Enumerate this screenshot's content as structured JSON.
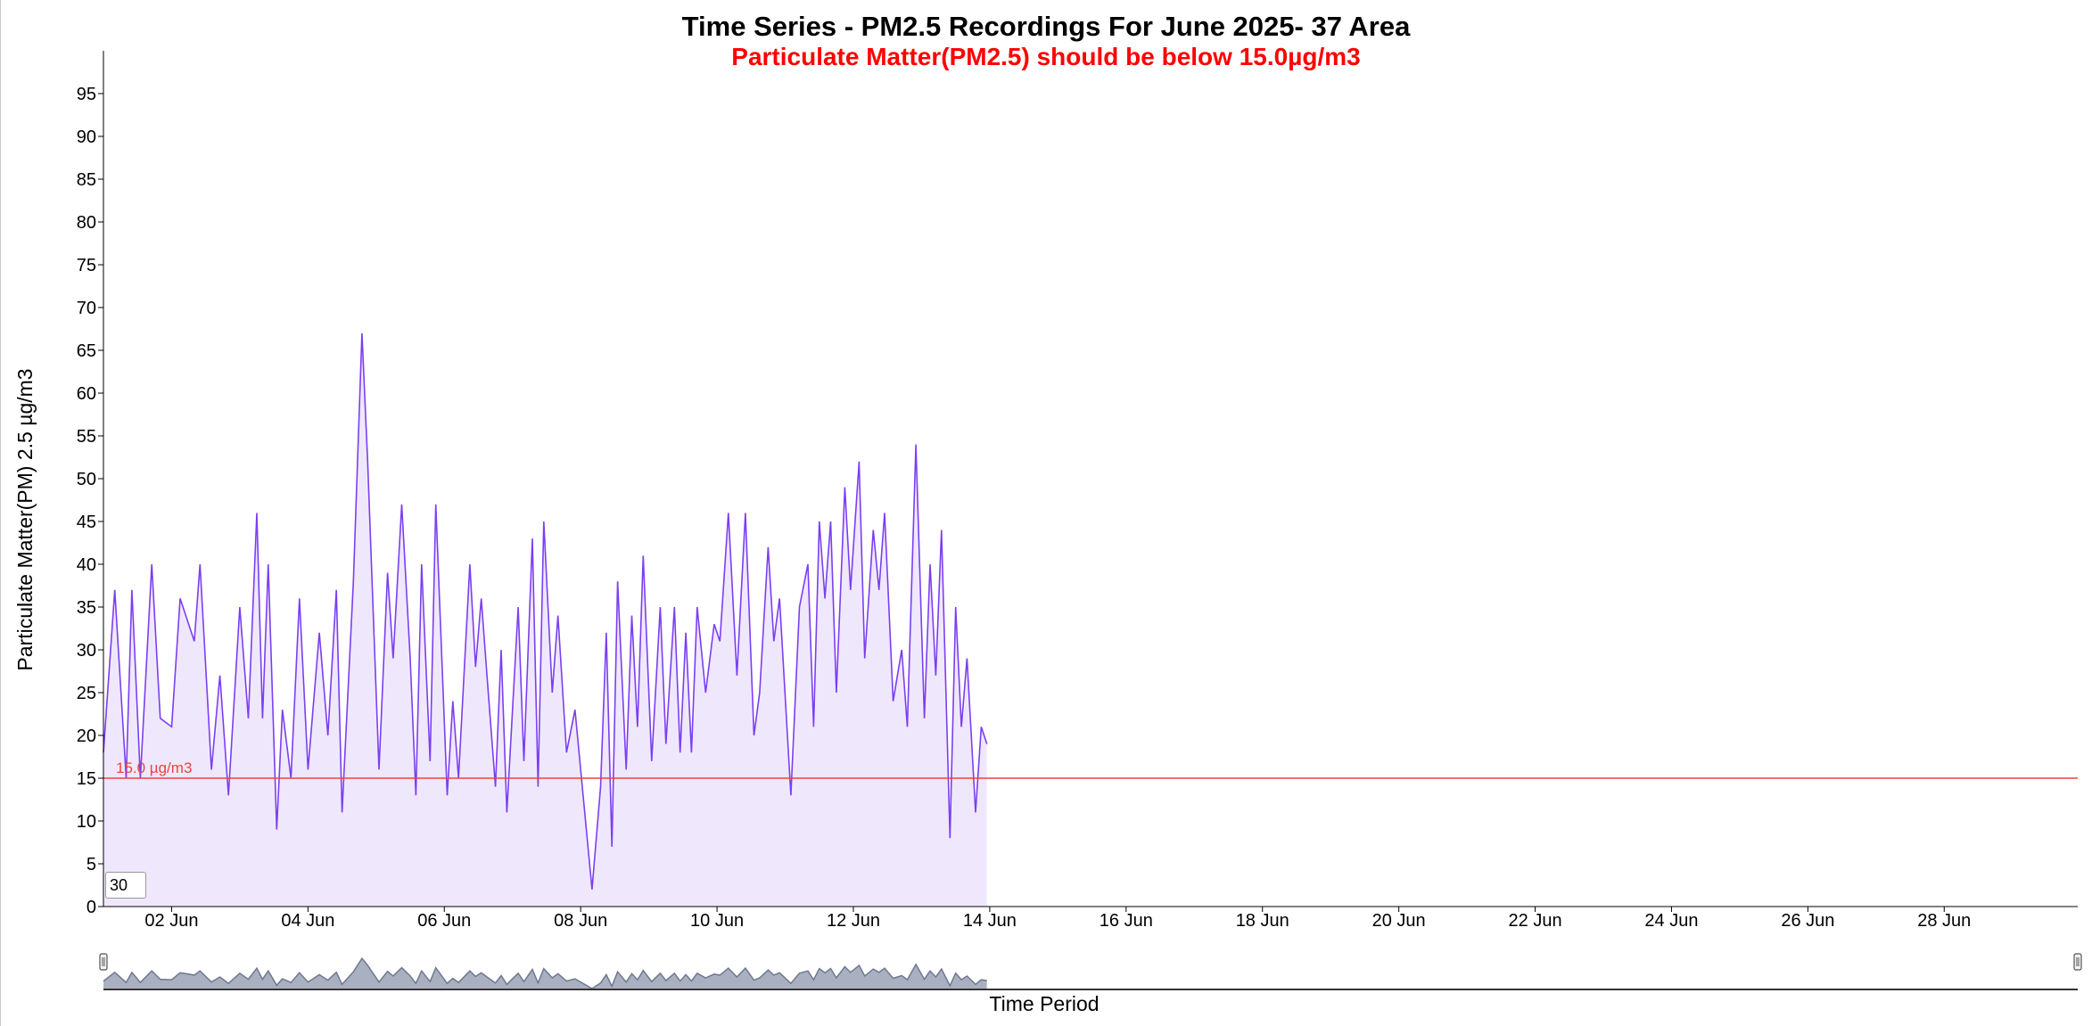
{
  "title": "Time Series - PM2.5 Recordings For June 2025- 37 Area",
  "subtitle": "Particulate Matter(PM2.5) should be below 15.0µg/m3",
  "zoom_value": "30",
  "colors": {
    "series_line": "#7b3ff2",
    "series_fill": "#efe8fd",
    "threshold": "#e8453c",
    "subtitle": "#ff0000",
    "navigator_fill": "#a9b0c0",
    "navigator_line": "#6e7890"
  },
  "chart_data": {
    "type": "area",
    "title": "Time Series - PM2.5 Recordings For June 2025- 37 Area",
    "subtitle": "Particulate Matter(PM2.5) should be below 15.0µg/m3",
    "xlabel": "Time Period",
    "ylabel": "Particulate Matter(PM) 2.5 µg/m3",
    "ylim": [
      0,
      100
    ],
    "yticks": [
      0,
      5,
      10,
      15,
      20,
      25,
      30,
      35,
      40,
      45,
      50,
      55,
      60,
      65,
      70,
      75,
      80,
      85,
      90,
      95
    ],
    "xlim": [
      "2025-06-01 00:00",
      "2025-06-29 23:00"
    ],
    "xticks": [
      {
        "date": "2025-06-02",
        "label": "02 Jun"
      },
      {
        "date": "2025-06-04",
        "label": "04 Jun"
      },
      {
        "date": "2025-06-06",
        "label": "06 Jun"
      },
      {
        "date": "2025-06-08",
        "label": "08 Jun"
      },
      {
        "date": "2025-06-10",
        "label": "10 Jun"
      },
      {
        "date": "2025-06-12",
        "label": "12 Jun"
      },
      {
        "date": "2025-06-14",
        "label": "14 Jun"
      },
      {
        "date": "2025-06-16",
        "label": "16 Jun"
      },
      {
        "date": "2025-06-18",
        "label": "18 Jun"
      },
      {
        "date": "2025-06-20",
        "label": "20 Jun"
      },
      {
        "date": "2025-06-22",
        "label": "22 Jun"
      },
      {
        "date": "2025-06-24",
        "label": "24 Jun"
      },
      {
        "date": "2025-06-26",
        "label": "26 Jun"
      },
      {
        "date": "2025-06-28",
        "label": "28 Jun"
      }
    ],
    "threshold": {
      "value": 15,
      "label": "15.0 µg/m3"
    },
    "grid": false,
    "legend": "none",
    "navigator": true,
    "series": [
      {
        "points": [
          [
            "2025-06-01 00:00",
            18
          ],
          [
            "2025-06-01 04:00",
            37
          ],
          [
            "2025-06-01 08:00",
            15
          ],
          [
            "2025-06-01 10:00",
            37
          ],
          [
            "2025-06-01 13:00",
            15
          ],
          [
            "2025-06-01 17:00",
            40
          ],
          [
            "2025-06-01 20:00",
            22
          ],
          [
            "2025-06-02 00:00",
            21
          ],
          [
            "2025-06-02 03:00",
            36
          ],
          [
            "2025-06-02 05:00",
            34
          ],
          [
            "2025-06-02 08:00",
            31
          ],
          [
            "2025-06-02 10:00",
            40
          ],
          [
            "2025-06-02 14:00",
            16
          ],
          [
            "2025-06-02 17:00",
            27
          ],
          [
            "2025-06-02 20:00",
            13
          ],
          [
            "2025-06-03 00:00",
            35
          ],
          [
            "2025-06-03 03:00",
            22
          ],
          [
            "2025-06-03 06:00",
            46
          ],
          [
            "2025-06-03 08:00",
            22
          ],
          [
            "2025-06-03 10:00",
            40
          ],
          [
            "2025-06-03 13:00",
            9
          ],
          [
            "2025-06-03 15:00",
            23
          ],
          [
            "2025-06-03 18:00",
            15
          ],
          [
            "2025-06-03 21:00",
            36
          ],
          [
            "2025-06-04 00:00",
            16
          ],
          [
            "2025-06-04 04:00",
            32
          ],
          [
            "2025-06-04 07:00",
            20
          ],
          [
            "2025-06-04 10:00",
            37
          ],
          [
            "2025-06-04 12:00",
            11
          ],
          [
            "2025-06-04 16:00",
            38
          ],
          [
            "2025-06-04 19:00",
            67
          ],
          [
            "2025-06-04 21:00",
            52
          ],
          [
            "2025-06-05 01:00",
            16
          ],
          [
            "2025-06-05 04:00",
            39
          ],
          [
            "2025-06-05 06:00",
            29
          ],
          [
            "2025-06-05 09:00",
            47
          ],
          [
            "2025-06-05 12:00",
            29
          ],
          [
            "2025-06-05 14:00",
            13
          ],
          [
            "2025-06-05 16:00",
            40
          ],
          [
            "2025-06-05 19:00",
            17
          ],
          [
            "2025-06-05 21:00",
            47
          ],
          [
            "2025-06-06 01:00",
            13
          ],
          [
            "2025-06-06 03:00",
            24
          ],
          [
            "2025-06-06 05:00",
            15
          ],
          [
            "2025-06-06 09:00",
            40
          ],
          [
            "2025-06-06 11:00",
            28
          ],
          [
            "2025-06-06 13:00",
            36
          ],
          [
            "2025-06-06 15:00",
            27
          ],
          [
            "2025-06-06 18:00",
            14
          ],
          [
            "2025-06-06 20:00",
            30
          ],
          [
            "2025-06-06 22:00",
            11
          ],
          [
            "2025-06-07 02:00",
            35
          ],
          [
            "2025-06-07 04:00",
            17
          ],
          [
            "2025-06-07 07:00",
            43
          ],
          [
            "2025-06-07 09:00",
            14
          ],
          [
            "2025-06-07 11:00",
            45
          ],
          [
            "2025-06-07 14:00",
            25
          ],
          [
            "2025-06-07 16:00",
            34
          ],
          [
            "2025-06-07 19:00",
            18
          ],
          [
            "2025-06-07 22:00",
            23
          ],
          [
            "2025-06-08 04:00",
            2
          ],
          [
            "2025-06-08 07:00",
            14
          ],
          [
            "2025-06-08 09:00",
            32
          ],
          [
            "2025-06-08 11:00",
            7
          ],
          [
            "2025-06-08 13:00",
            38
          ],
          [
            "2025-06-08 16:00",
            16
          ],
          [
            "2025-06-08 18:00",
            34
          ],
          [
            "2025-06-08 20:00",
            21
          ],
          [
            "2025-06-08 22:00",
            41
          ],
          [
            "2025-06-09 01:00",
            17
          ],
          [
            "2025-06-09 04:00",
            35
          ],
          [
            "2025-06-09 06:00",
            19
          ],
          [
            "2025-06-09 09:00",
            35
          ],
          [
            "2025-06-09 11:00",
            18
          ],
          [
            "2025-06-09 13:00",
            32
          ],
          [
            "2025-06-09 15:00",
            18
          ],
          [
            "2025-06-09 17:00",
            35
          ],
          [
            "2025-06-09 20:00",
            25
          ],
          [
            "2025-06-09 23:00",
            33
          ],
          [
            "2025-06-10 01:00",
            31
          ],
          [
            "2025-06-10 04:00",
            46
          ],
          [
            "2025-06-10 07:00",
            27
          ],
          [
            "2025-06-10 10:00",
            46
          ],
          [
            "2025-06-10 13:00",
            20
          ],
          [
            "2025-06-10 15:00",
            25
          ],
          [
            "2025-06-10 18:00",
            42
          ],
          [
            "2025-06-10 20:00",
            31
          ],
          [
            "2025-06-10 22:00",
            36
          ],
          [
            "2025-06-11 02:00",
            13
          ],
          [
            "2025-06-11 05:00",
            35
          ],
          [
            "2025-06-11 08:00",
            40
          ],
          [
            "2025-06-11 10:00",
            21
          ],
          [
            "2025-06-11 12:00",
            45
          ],
          [
            "2025-06-11 14:00",
            36
          ],
          [
            "2025-06-11 16:00",
            45
          ],
          [
            "2025-06-11 18:00",
            25
          ],
          [
            "2025-06-11 21:00",
            49
          ],
          [
            "2025-06-11 23:00",
            37
          ],
          [
            "2025-06-12 02:00",
            52
          ],
          [
            "2025-06-12 04:00",
            29
          ],
          [
            "2025-06-12 07:00",
            44
          ],
          [
            "2025-06-12 09:00",
            37
          ],
          [
            "2025-06-12 11:00",
            46
          ],
          [
            "2025-06-12 14:00",
            24
          ],
          [
            "2025-06-12 17:00",
            30
          ],
          [
            "2025-06-12 19:00",
            21
          ],
          [
            "2025-06-12 22:00",
            54
          ],
          [
            "2025-06-13 01:00",
            22
          ],
          [
            "2025-06-13 03:00",
            40
          ],
          [
            "2025-06-13 05:00",
            27
          ],
          [
            "2025-06-13 07:00",
            44
          ],
          [
            "2025-06-13 10:00",
            8
          ],
          [
            "2025-06-13 12:00",
            35
          ],
          [
            "2025-06-13 14:00",
            21
          ],
          [
            "2025-06-13 16:00",
            29
          ],
          [
            "2025-06-13 19:00",
            11
          ],
          [
            "2025-06-13 21:00",
            21
          ],
          [
            "2025-06-13 23:00",
            19
          ]
        ]
      }
    ]
  }
}
